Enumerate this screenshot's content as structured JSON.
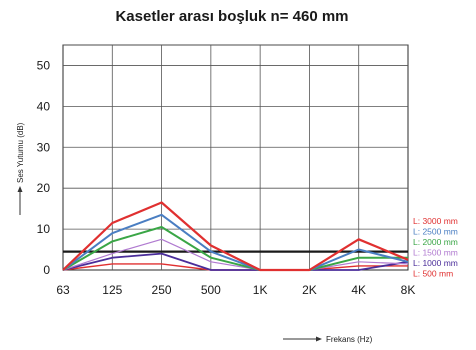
{
  "chart_data": {
    "type": "line",
    "title": "Kasetler arası boşluk  n= 460 mm",
    "xlabel": "Frekans (Hz)",
    "ylabel": "Ses Yutumu (dB)",
    "categories": [
      "63",
      "125",
      "250",
      "500",
      "1K",
      "2K",
      "4K",
      "8K"
    ],
    "y_ticks": [
      0,
      10,
      20,
      30,
      40,
      50
    ],
    "ylim": [
      0,
      55
    ],
    "grid": true,
    "legend_position": "right",
    "reference_line": 4.5,
    "series": [
      {
        "name": "L: 3000 mm",
        "color": "#e03030",
        "values": [
          0,
          11.5,
          16.5,
          6,
          0,
          0,
          7.5,
          2.5
        ]
      },
      {
        "name": "L: 2500 mm",
        "color": "#4a7ec2",
        "values": [
          0,
          9,
          13.5,
          4.5,
          0,
          0,
          5,
          2
        ]
      },
      {
        "name": "L: 2000 mm",
        "color": "#3aa646",
        "values": [
          0,
          7,
          10.5,
          3,
          0,
          0,
          3,
          3
        ]
      },
      {
        "name": "L: 1500 mm",
        "color": "#b07ad0",
        "values": [
          0,
          4,
          7.5,
          2,
          0,
          0,
          2,
          1.5
        ]
      },
      {
        "name": "L: 1000 mm",
        "color": "#4a2d9a",
        "values": [
          0,
          3,
          4,
          0,
          0,
          0,
          0,
          2
        ]
      },
      {
        "name": "L: 500 mm",
        "color": "#e03030",
        "values": [
          0,
          1.5,
          1.5,
          0,
          0,
          0,
          1,
          1
        ]
      }
    ]
  }
}
